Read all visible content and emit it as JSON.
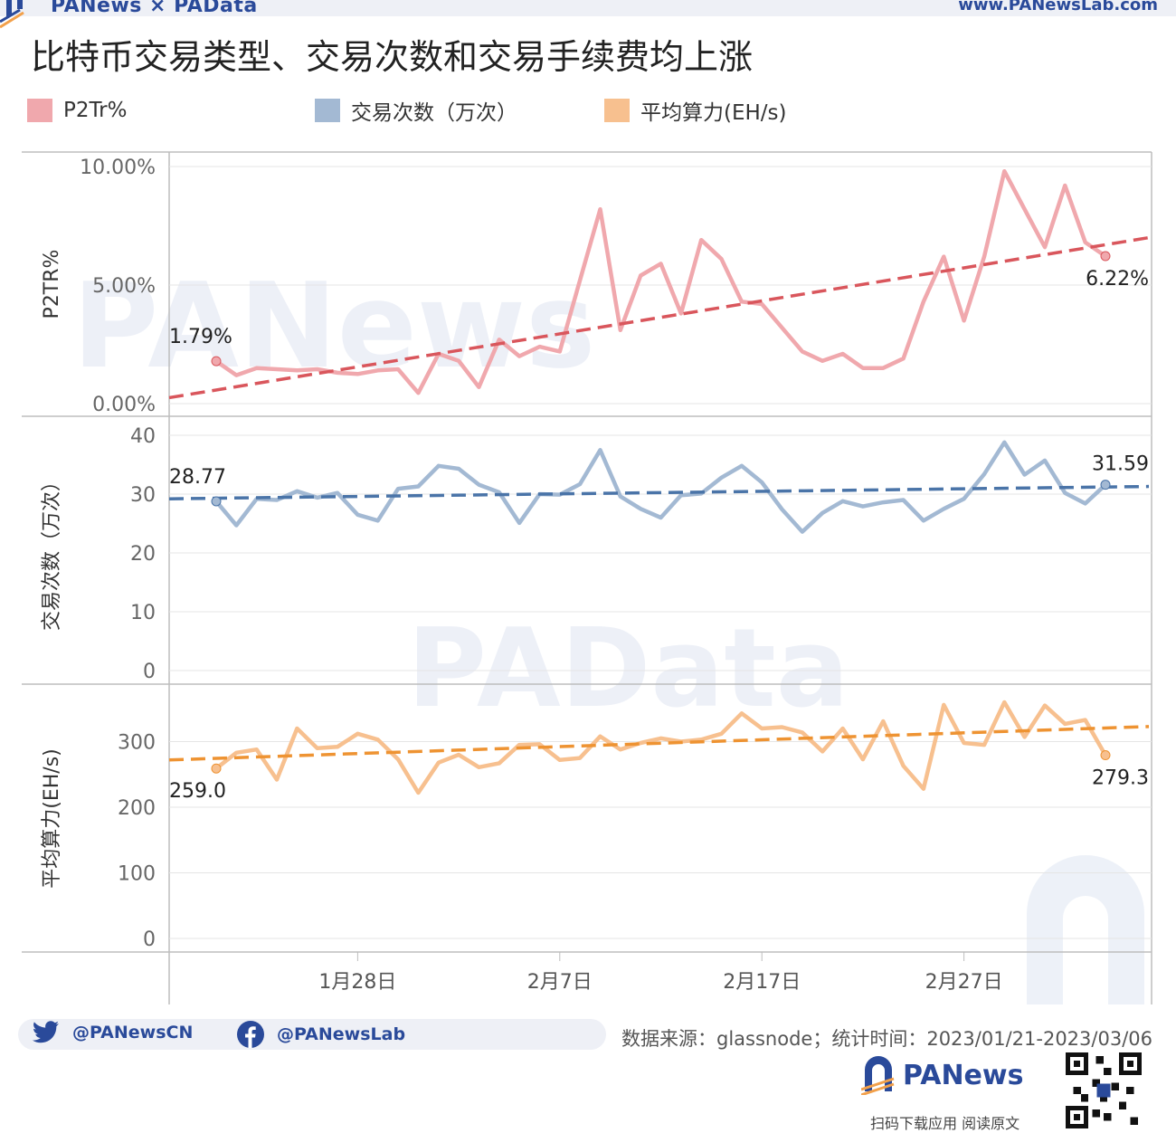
{
  "header": {
    "brand_left": "PANews × PAData",
    "brand_right": "www.PANewsLab.com"
  },
  "title": "比特币交易类型、交易次数和交易手续费均上涨",
  "legend": [
    {
      "label": "P2Tr%",
      "color": "#f0a8ad"
    },
    {
      "label": "交易次数（万次）",
      "color": "#a3b9d3"
    },
    {
      "label": "平均算力(EH/s)",
      "color": "#f7c08f"
    }
  ],
  "watermarks": {
    "top": "PANews",
    "middle": "PAData"
  },
  "colors": {
    "p2tr_line": "#f0a8ad",
    "p2tr_trend": "#d9565c",
    "tx_line": "#a3b9d3",
    "tx_trend": "#4a74a8",
    "hash_line": "#f7c08f",
    "hash_trend": "#ee9332",
    "grid": "#e5e5e5",
    "axis": "#bdbdbd",
    "watermark": "#e9edf6"
  },
  "chart_data": [
    {
      "type": "line",
      "ylabel": "P2TR%",
      "ylim": [
        0,
        10
      ],
      "yticks": [
        "0.00%",
        "5.00%",
        "10.00%"
      ],
      "start_label": "1.79%",
      "end_label": "6.22%",
      "trend": [
        0.25,
        7.0
      ],
      "series": [
        {
          "name": "P2Tr%",
          "values": [
            1.79,
            1.2,
            1.5,
            1.45,
            1.4,
            1.45,
            1.3,
            1.25,
            1.4,
            1.45,
            0.45,
            2.1,
            1.8,
            0.7,
            2.7,
            2.0,
            2.4,
            2.2,
            5.2,
            8.2,
            3.1,
            5.4,
            5.9,
            3.8,
            6.9,
            6.1,
            4.3,
            4.2,
            3.2,
            2.2,
            1.8,
            2.1,
            1.5,
            1.5,
            1.9,
            4.3,
            6.2,
            3.5,
            6.2,
            9.8,
            8.2,
            6.6,
            9.2,
            6.8,
            6.22
          ]
        }
      ]
    },
    {
      "type": "line",
      "ylabel": "交易次数（万次）",
      "ylim": [
        0,
        40
      ],
      "yticks": [
        "0",
        "10",
        "20",
        "30",
        "40"
      ],
      "start_label": "28.77",
      "end_label": "31.59",
      "trend": [
        29.2,
        31.3
      ],
      "series": [
        {
          "name": "交易次数（万次）",
          "values": [
            28.77,
            24.7,
            29.2,
            29.0,
            30.5,
            29.4,
            30.2,
            26.5,
            25.5,
            30.9,
            31.3,
            34.8,
            34.3,
            31.6,
            30.3,
            25.1,
            30.0,
            29.9,
            31.7,
            37.5,
            29.6,
            27.5,
            26.0,
            29.8,
            30.1,
            32.8,
            34.8,
            32.0,
            27.4,
            23.6,
            26.8,
            28.8,
            27.9,
            28.6,
            29.0,
            25.5,
            27.5,
            29.2,
            33.4,
            38.8,
            33.3,
            35.7,
            30.2,
            28.4,
            31.59
          ]
        }
      ]
    },
    {
      "type": "line",
      "ylabel": "平均算力(EH/s)",
      "ylim": [
        0,
        400
      ],
      "yticks": [
        "0",
        "100",
        "200",
        "300"
      ],
      "start_label": "259.0",
      "end_label": "279.3",
      "trend": [
        272,
        323
      ],
      "series": [
        {
          "name": "平均算力(EH/s)",
          "values": [
            259.0,
            283,
            288,
            242,
            320,
            290,
            292,
            312,
            303,
            273,
            222,
            268,
            280,
            261,
            267,
            295,
            296,
            272,
            275,
            308,
            288,
            298,
            305,
            300,
            303,
            312,
            343,
            320,
            322,
            314,
            285,
            320,
            273,
            331,
            263,
            228,
            356,
            298,
            295,
            360,
            307,
            355,
            327,
            333,
            279.3
          ]
        }
      ]
    }
  ],
  "x_axis": {
    "start_date": "2023/01/21",
    "ticks": [
      {
        "label": "1月28日",
        "index": 7
      },
      {
        "label": "2月7日",
        "index": 17
      },
      {
        "label": "2月17日",
        "index": 27
      },
      {
        "label": "2月27日",
        "index": 37
      }
    ]
  },
  "footer": {
    "twitter": "@PANewsCN",
    "facebook": "@PANewsLab",
    "source": "数据来源：glassnode；统计时间：2023/01/21-2023/03/06",
    "brand": "PANews",
    "scan_text": "扫码下载应用  阅读原文"
  }
}
